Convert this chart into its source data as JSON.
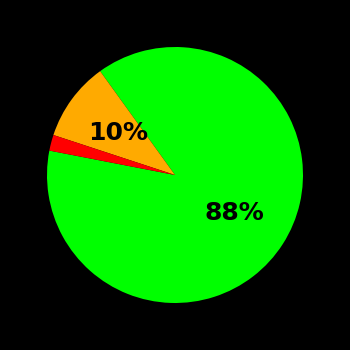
{
  "slices": [
    88,
    10,
    2
  ],
  "colors": [
    "#00ff00",
    "#ffaa00",
    "#ff0000"
  ],
  "labels": [
    "88%",
    "10%",
    ""
  ],
  "background_color": "#000000",
  "text_color": "#000000",
  "startangle": 169,
  "figsize": [
    3.5,
    3.5
  ],
  "dpi": 100
}
